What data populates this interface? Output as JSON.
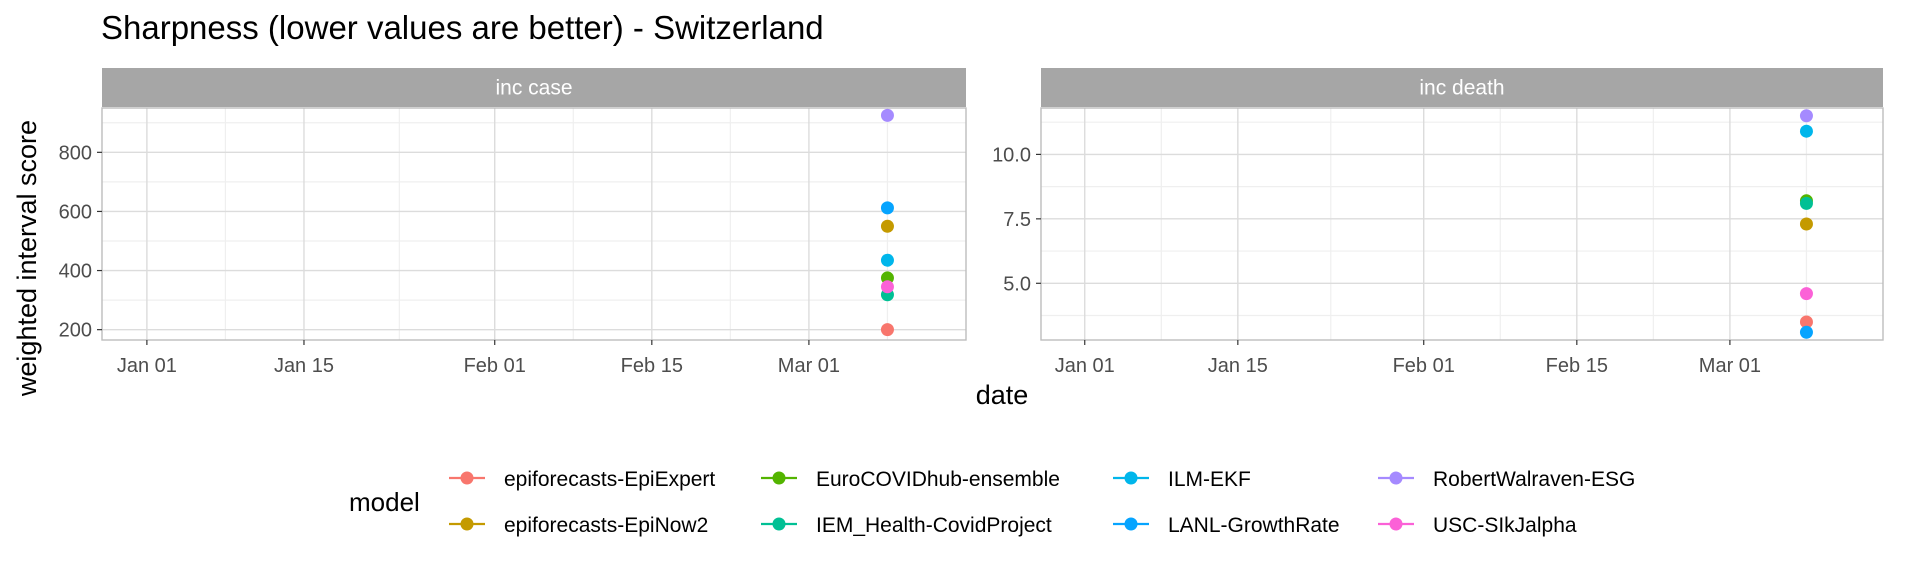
{
  "title": "Sharpness (lower values are better) - Switzerland",
  "xlabel": "date",
  "ylabel": "weighted interval score",
  "legend_title": "model",
  "colors": {
    "strip_bg": "#a6a6a6",
    "panel_border": "#bdbdbd",
    "grid_major": "#dcdcdc",
    "grid_minor": "#efefef"
  },
  "chart_data": [
    {
      "type": "scatter",
      "facet": "inc case",
      "xlabel": "date",
      "ylabel": "weighted interval score",
      "xlim": [
        "2020-12-28",
        "2021-03-15"
      ],
      "ylim": [
        165,
        950
      ],
      "x_ticks": [
        "2021-01-01",
        "2021-01-15",
        "2021-02-01",
        "2021-02-15",
        "2021-03-01"
      ],
      "x_tick_labels": [
        "Jan 01",
        "Jan 15",
        "Feb 01",
        "Feb 15",
        "Mar 01"
      ],
      "y_ticks": [
        200,
        400,
        600,
        800
      ],
      "y_tick_labels": [
        "200",
        "400",
        "600",
        "800"
      ],
      "grid": true,
      "series": [
        {
          "name": "epiforecasts-EpiExpert",
          "color": "#F8766D",
          "points": [
            {
              "x": "2021-03-08",
              "y": 200
            }
          ]
        },
        {
          "name": "epiforecasts-EpiNow2",
          "color": "#C49A00",
          "points": [
            {
              "x": "2021-03-08",
              "y": 550
            }
          ]
        },
        {
          "name": "EuroCOVIDhub-ensemble",
          "color": "#53B400",
          "points": [
            {
              "x": "2021-03-08",
              "y": 375
            }
          ]
        },
        {
          "name": "IEM_Health-CovidProject",
          "color": "#00C094",
          "points": [
            {
              "x": "2021-03-08",
              "y": 318
            }
          ]
        },
        {
          "name": "ILM-EKF",
          "color": "#00B6EB",
          "points": [
            {
              "x": "2021-03-08",
              "y": 435
            }
          ]
        },
        {
          "name": "LANL-GrowthRate",
          "color": "#06A4FF",
          "points": [
            {
              "x": "2021-03-08",
              "y": 612
            }
          ]
        },
        {
          "name": "RobertWalraven-ESG",
          "color": "#A58AFF",
          "points": [
            {
              "x": "2021-03-08",
              "y": 925
            }
          ]
        },
        {
          "name": "USC-SIkJalpha",
          "color": "#FB61D7",
          "points": [
            {
              "x": "2021-03-08",
              "y": 345
            }
          ]
        }
      ]
    },
    {
      "type": "scatter",
      "facet": "inc death",
      "xlabel": "date",
      "ylabel": "weighted interval score",
      "xlim": [
        "2020-12-28",
        "2021-03-15"
      ],
      "ylim": [
        2.8,
        11.8
      ],
      "x_ticks": [
        "2021-01-01",
        "2021-01-15",
        "2021-02-01",
        "2021-02-15",
        "2021-03-01"
      ],
      "x_tick_labels": [
        "Jan 01",
        "Jan 15",
        "Feb 01",
        "Feb 15",
        "Mar 01"
      ],
      "y_ticks": [
        5.0,
        7.5,
        10.0
      ],
      "y_tick_labels": [
        "5.0",
        "7.5",
        "10.0"
      ],
      "grid": true,
      "series": [
        {
          "name": "epiforecasts-EpiExpert",
          "color": "#F8766D",
          "points": [
            {
              "x": "2021-03-08",
              "y": 3.5
            }
          ]
        },
        {
          "name": "epiforecasts-EpiNow2",
          "color": "#C49A00",
          "points": [
            {
              "x": "2021-03-08",
              "y": 7.3
            }
          ]
        },
        {
          "name": "EuroCOVIDhub-ensemble",
          "color": "#53B400",
          "points": [
            {
              "x": "2021-03-08",
              "y": 8.2
            }
          ]
        },
        {
          "name": "IEM_Health-CovidProject",
          "color": "#00C094",
          "points": [
            {
              "x": "2021-03-08",
              "y": 8.1
            }
          ]
        },
        {
          "name": "ILM-EKF",
          "color": "#00B6EB",
          "points": [
            {
              "x": "2021-03-08",
              "y": 10.9
            }
          ]
        },
        {
          "name": "LANL-GrowthRate",
          "color": "#06A4FF",
          "points": [
            {
              "x": "2021-03-08",
              "y": 3.1
            }
          ]
        },
        {
          "name": "RobertWalraven-ESG",
          "color": "#A58AFF",
          "points": [
            {
              "x": "2021-03-08",
              "y": 11.5
            }
          ]
        },
        {
          "name": "USC-SIkJalpha",
          "color": "#FB61D7",
          "points": [
            {
              "x": "2021-03-08",
              "y": 4.6
            }
          ]
        }
      ]
    }
  ],
  "legend": {
    "placement": "bottom",
    "items": [
      {
        "label": "epiforecasts-EpiExpert",
        "color": "#F8766D"
      },
      {
        "label": "epiforecasts-EpiNow2",
        "color": "#C49A00"
      },
      {
        "label": "EuroCOVIDhub-ensemble",
        "color": "#53B400"
      },
      {
        "label": "IEM_Health-CovidProject",
        "color": "#00C094"
      },
      {
        "label": "ILM-EKF",
        "color": "#00B6EB"
      },
      {
        "label": "LANL-GrowthRate",
        "color": "#06A4FF"
      },
      {
        "label": "RobertWalraven-ESG",
        "color": "#A58AFF"
      },
      {
        "label": "USC-SIkJalpha",
        "color": "#FB61D7"
      }
    ]
  }
}
